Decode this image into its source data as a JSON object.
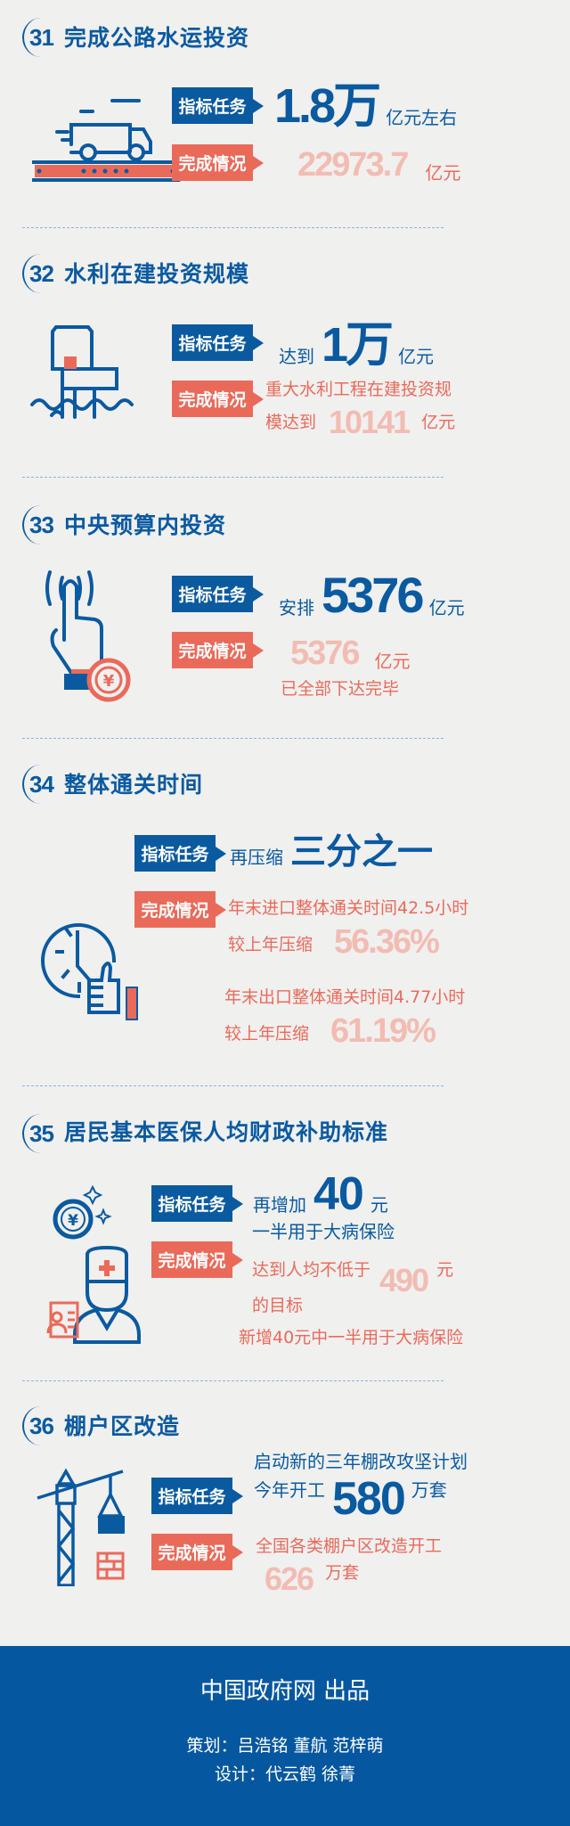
{
  "labels": {
    "target": "指标任务",
    "done": "完成情况"
  },
  "colors": {
    "blue": "#0a5aa0",
    "coral": "#ea6a5a",
    "faded": "#f2bcb2",
    "footer": "#0558a0"
  },
  "sections": [
    {
      "num": "31",
      "title": "完成公路水运投资",
      "icon": "truck-on-road-icon",
      "target_value": "1.8万",
      "target_unit": "亿元左右",
      "done_value": "22973.7",
      "done_unit": "亿元"
    },
    {
      "num": "32",
      "title": "水利在建投资规模",
      "icon": "water-dam-icon",
      "target_prefix": "达到",
      "target_value": "1万",
      "target_unit": "亿元",
      "done_line1": "重大水利工程在建投资规",
      "done_line2": "模达到",
      "done_value": "10141",
      "done_unit": "亿元"
    },
    {
      "num": "33",
      "title": "中央预算内投资",
      "icon": "hand-tap-yuan-coin-icon",
      "target_prefix": "安排",
      "target_value": "5376",
      "target_unit": "亿元",
      "done_value": "5376",
      "done_unit": "亿元",
      "done_note": "已全部下达完毕"
    },
    {
      "num": "34",
      "title": "整体通关时间",
      "icon": "clock-thumbs-up-icon",
      "target_prefix": "再压缩",
      "target_value": "三分之一",
      "done_a_line1": "年末进口整体通关时间42.5小时",
      "done_a_line2": "较上年压缩",
      "done_a_value": "56.36%",
      "done_b_line1": "年末出口整体通关时间4.77小时",
      "done_b_line2": "较上年压缩",
      "done_b_value": "61.19%"
    },
    {
      "num": "35",
      "title": "居民基本医保人均财政补助标准",
      "icon": "doctor-yuan-coin-icon",
      "target_prefix": "再增加",
      "target_value": "40",
      "target_unit": "元",
      "target_note": "一半用于大病保险",
      "done_line1": "达到人均不低于",
      "done_value": "490",
      "done_unit": "元",
      "done_line2": "的目标",
      "done_note": "新增40元中一半用于大病保险"
    },
    {
      "num": "36",
      "title": "棚户区改造",
      "icon": "tower-crane-icon",
      "target_note": "启动新的三年棚改攻坚计划",
      "target_prefix": "今年开工",
      "target_value": "580",
      "target_unit": "万套",
      "done_line1": "全国各类棚户区改造开工",
      "done_value": "626",
      "done_unit": "万套"
    }
  ],
  "footer": {
    "publisher": "中国政府网  出品",
    "planning": "策划：吕浩铭   董航   范梓萌",
    "design": "设计：代云鹤  徐菁"
  }
}
